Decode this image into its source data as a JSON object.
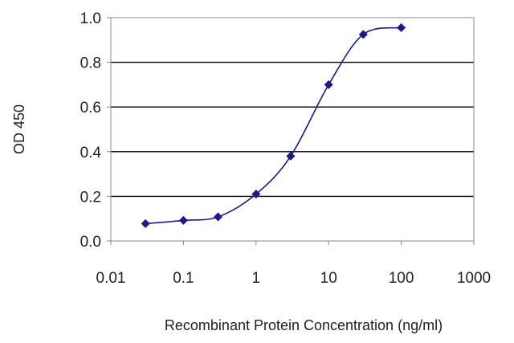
{
  "chart_data": {
    "type": "scatter",
    "title": "",
    "xlabel": "Recombinant Protein Concentration (ng/ml)",
    "ylabel": "OD 450",
    "x_scale": "log",
    "xlim": [
      0.01,
      1000
    ],
    "ylim": [
      0.0,
      1.0
    ],
    "x_ticks": [
      "0.01",
      "0.1",
      "1",
      "10",
      "100",
      "1000"
    ],
    "y_ticks": [
      "0.0",
      "0.2",
      "0.4",
      "0.6",
      "0.8",
      "1.0"
    ],
    "grid": "horizontal",
    "series": [
      {
        "x": [
          0.03,
          0.1,
          0.3,
          1,
          3,
          10,
          30,
          100
        ],
        "y": [
          0.078,
          0.092,
          0.108,
          0.21,
          0.38,
          0.7,
          0.925,
          0.955
        ],
        "marker": "diamond",
        "fit_curve": true
      }
    ],
    "colors": {
      "series": "#1a1a8c",
      "grid": "#000000",
      "axis": "#888888"
    }
  }
}
